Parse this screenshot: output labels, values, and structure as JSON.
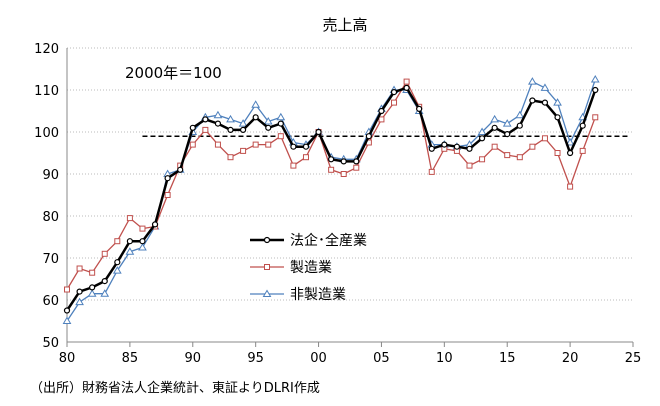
{
  "chart_data": {
    "type": "line",
    "title": "売上高",
    "annotation": "2000年＝100",
    "source": "（出所）財務省法人企業統計、東証よりDLRI作成",
    "xlim": [
      1980,
      2025
    ],
    "ylim": [
      50,
      120
    ],
    "x_ticks": [
      "80",
      "85",
      "90",
      "95",
      "00",
      "05",
      "10",
      "15",
      "20",
      "25"
    ],
    "y_ticks": [
      "50",
      "60",
      "70",
      "80",
      "90",
      "100",
      "110",
      "120"
    ],
    "grid": "horizontal dotted",
    "legend_placement": "center",
    "reference_line": {
      "value": 99,
      "x_from": 1986,
      "x_to": 2025,
      "style": "dashed",
      "color": "#000000"
    },
    "x": [
      1980,
      1981,
      1982,
      1983,
      1984,
      1985,
      1986,
      1987,
      1988,
      1989,
      1990,
      1991,
      1992,
      1993,
      1994,
      1995,
      1996,
      1997,
      1998,
      1999,
      2000,
      2001,
      2002,
      2003,
      2004,
      2005,
      2006,
      2007,
      2008,
      2009,
      2010,
      2011,
      2012,
      2013,
      2014,
      2015,
      2016,
      2017,
      2018,
      2019,
      2020,
      2021,
      2022
    ],
    "series": [
      {
        "name": "法企･全産業",
        "color": "#000000",
        "marker": "circle",
        "values": [
          57.5,
          62,
          63,
          64.5,
          69,
          74,
          74,
          78,
          89,
          91,
          101,
          103,
          102,
          100.5,
          100.5,
          103.5,
          101,
          102,
          96.5,
          96.5,
          100,
          93.5,
          93,
          93,
          99,
          105,
          109.5,
          110.5,
          105.5,
          96,
          97,
          96.5,
          96,
          98.5,
          101,
          99.5,
          101.5,
          107.5,
          107,
          103.5,
          95,
          101.5,
          110
        ]
      },
      {
        "name": "製造業",
        "color": "#c0504d",
        "marker": "square",
        "values": [
          62.5,
          67.5,
          66.5,
          71,
          74,
          79.5,
          77,
          77.5,
          85,
          92,
          97,
          100.5,
          97,
          94,
          95.5,
          97,
          97,
          99,
          92,
          94,
          100,
          91,
          90,
          91.5,
          97.5,
          103,
          107,
          112,
          106,
          90.5,
          96,
          95.5,
          92,
          93.5,
          96.5,
          94.5,
          94,
          96.5,
          98.5,
          95,
          87,
          95.5,
          103.5
        ]
      },
      {
        "name": "非製造業",
        "color": "#4f81bd",
        "marker": "triangle",
        "values": [
          55,
          59.5,
          61.5,
          61.5,
          67,
          71.5,
          72.5,
          77.5,
          90,
          91,
          100,
          103.5,
          104,
          103,
          102,
          106.5,
          102.5,
          103.5,
          97.5,
          97,
          100,
          94,
          93.5,
          93.5,
          100,
          105.5,
          110,
          110,
          105,
          97,
          97,
          96.5,
          97,
          100,
          103,
          102,
          104,
          112,
          110.5,
          107,
          97.5,
          103.5,
          112.5
        ]
      }
    ]
  }
}
